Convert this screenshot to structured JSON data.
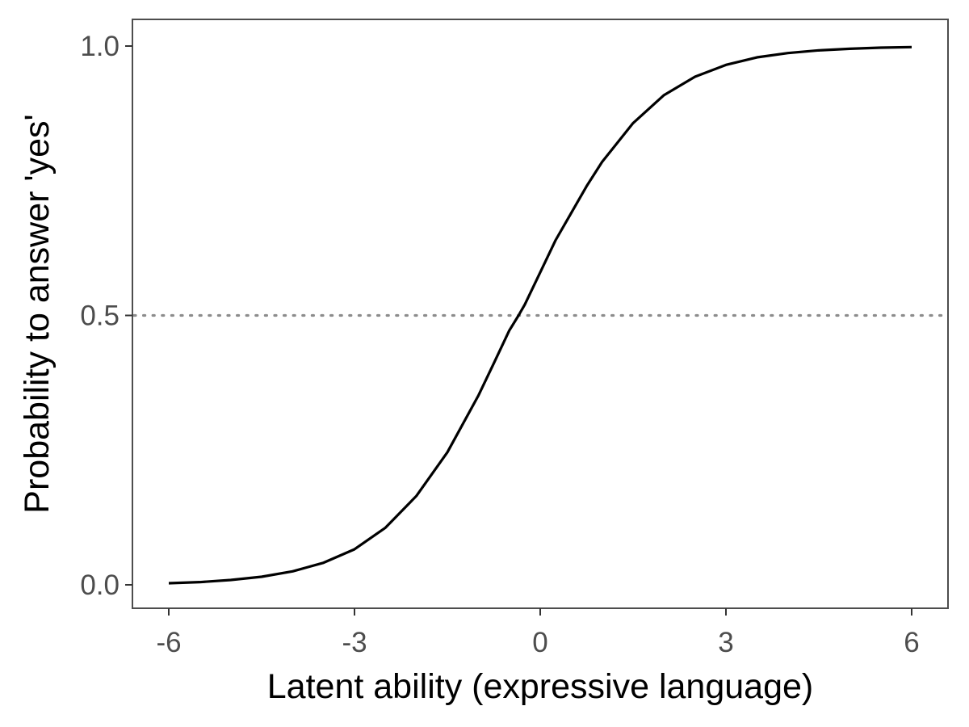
{
  "chart_data": {
    "type": "line",
    "title": "",
    "xlabel": "Latent ability (expressive language)",
    "ylabel": "Probability to answer 'yes'",
    "xlim": [
      -6,
      6
    ],
    "ylim": [
      0,
      1
    ],
    "x_ticks": [
      -6,
      -3,
      0,
      3,
      6
    ],
    "x_tick_labels": [
      "-6",
      "-3",
      "0",
      "3",
      "6"
    ],
    "y_ticks": [
      0,
      0.5,
      1
    ],
    "y_tick_labels": [
      "0.0",
      "0.5",
      "1.0"
    ],
    "grid": false,
    "legend": "none",
    "reference_lines": [
      {
        "orientation": "horizontal",
        "y": 0.5,
        "style": "dotted",
        "color": "#8c8c8c"
      }
    ],
    "series": [
      {
        "color": "#000000",
        "x": [
          -6,
          -5.5,
          -5,
          -4.5,
          -4,
          -3.5,
          -3,
          -2.5,
          -2,
          -1.5,
          -1,
          -0.75,
          -0.5,
          -0.35,
          -0.25,
          0,
          0.25,
          0.5,
          0.75,
          1,
          1.5,
          2,
          2.5,
          3,
          3.5,
          4,
          4.5,
          5,
          5.5,
          6
        ],
        "y": [
          0.003,
          0.005,
          0.009,
          0.015,
          0.025,
          0.041,
          0.066,
          0.106,
          0.165,
          0.246,
          0.351,
          0.411,
          0.472,
          0.5,
          0.52,
          0.58,
          0.64,
          0.69,
          0.74,
          0.785,
          0.857,
          0.909,
          0.943,
          0.965,
          0.979,
          0.987,
          0.992,
          0.995,
          0.997,
          0.998
        ]
      }
    ]
  },
  "colors": {
    "panel_border": "#4d4d4d",
    "tick_mark": "#333333",
    "tick_label": "#4d4d4d",
    "curve": "#000000",
    "reference_line": "#8c8c8c"
  }
}
